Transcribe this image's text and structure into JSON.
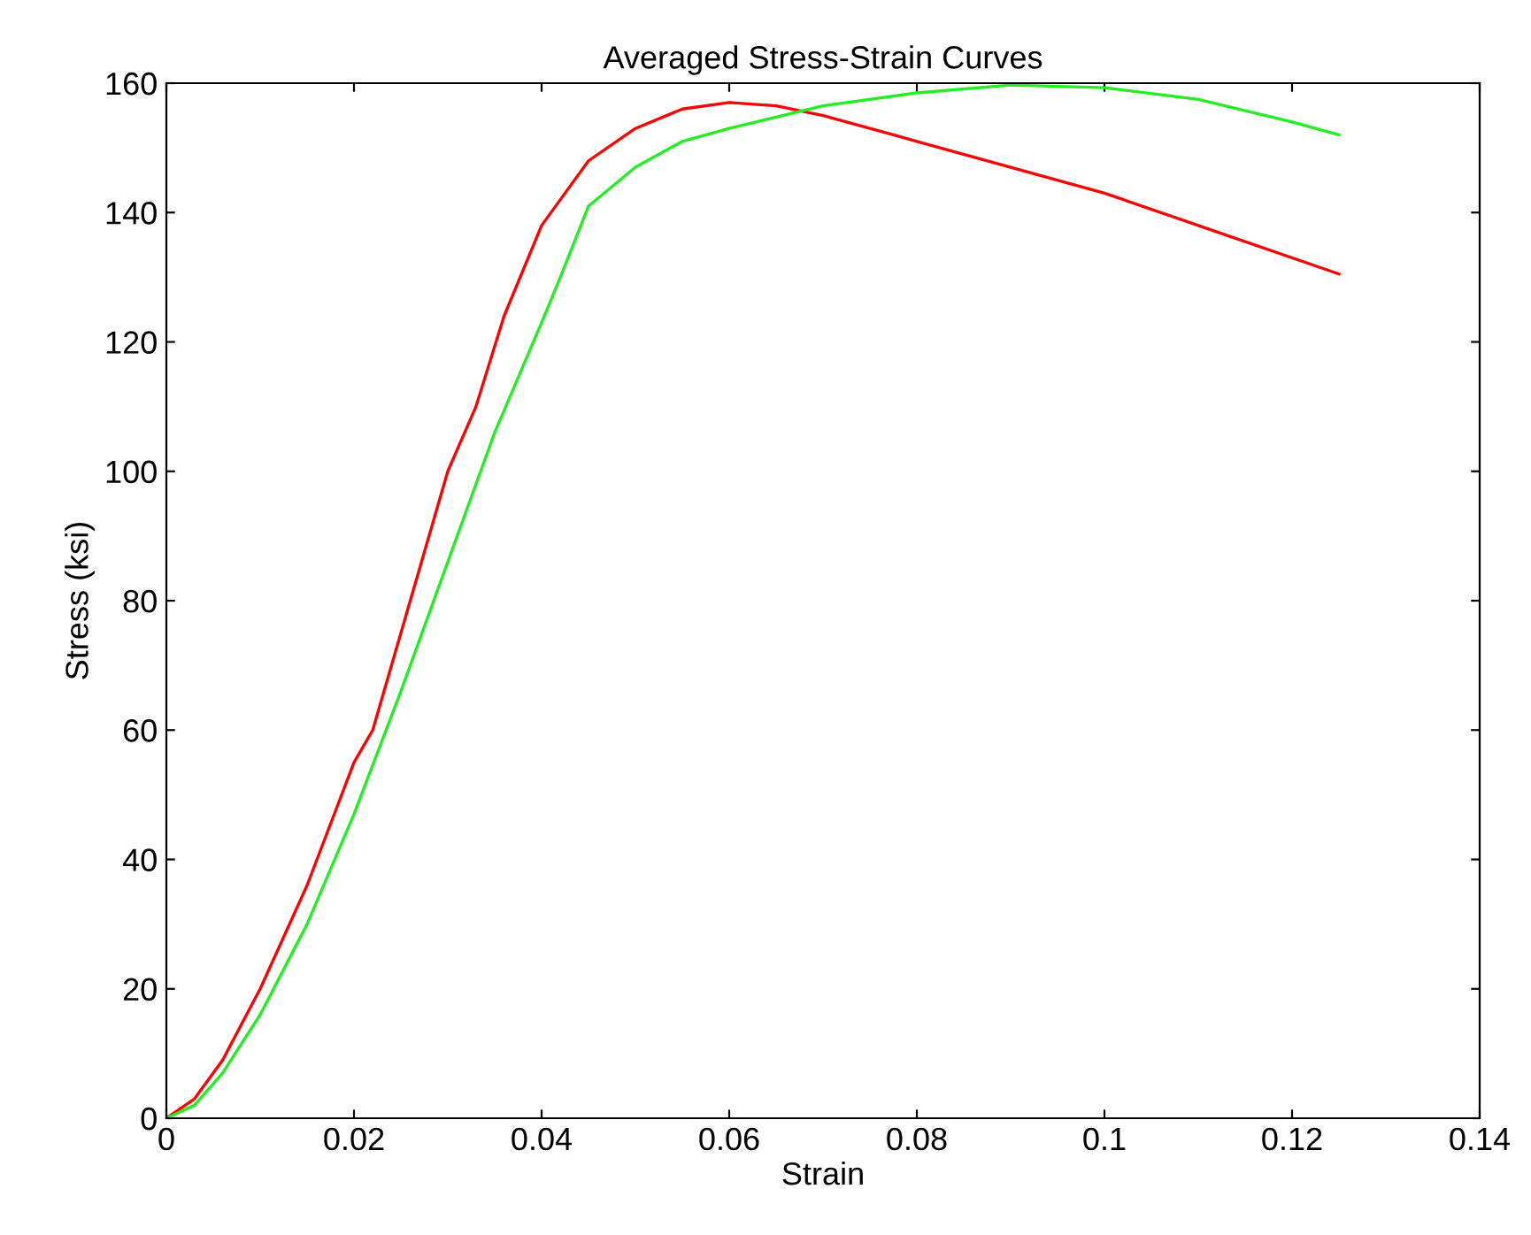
{
  "chart_data": {
    "type": "line",
    "title": "Averaged Stress-Strain Curves",
    "xlabel": "Strain",
    "ylabel": "Stress (ksi)",
    "xlim": [
      0,
      0.14
    ],
    "xticks": [
      0,
      0.02,
      0.04,
      0.06,
      0.08,
      0.1,
      0.12,
      0.14
    ],
    "ylim": [
      0,
      160
    ],
    "yticks": [
      0,
      20,
      40,
      60,
      80,
      100,
      120,
      140,
      160
    ],
    "grid": false,
    "legend": false,
    "marker": "none",
    "line_style": "solid",
    "series": [
      {
        "color": "#ff0000",
        "x": [
          0,
          0.003,
          0.006,
          0.01,
          0.015,
          0.02,
          0.022,
          0.025,
          0.03,
          0.033,
          0.036,
          0.04,
          0.042,
          0.045,
          0.05,
          0.055,
          0.06,
          0.065,
          0.07,
          0.08,
          0.09,
          0.1,
          0.11,
          0.125
        ],
        "values": [
          0,
          3,
          9,
          20,
          36,
          55,
          60,
          75,
          100,
          110,
          124,
          138,
          142,
          148,
          153,
          156,
          157,
          156.5,
          155,
          151,
          147,
          143,
          138,
          130.5
        ]
      },
      {
        "color": "#22ee22",
        "x": [
          0,
          0.003,
          0.006,
          0.01,
          0.015,
          0.02,
          0.025,
          0.03,
          0.035,
          0.04,
          0.042,
          0.045,
          0.05,
          0.055,
          0.06,
          0.07,
          0.08,
          0.09,
          0.1,
          0.11,
          0.12,
          0.125
        ],
        "values": [
          0,
          2,
          7,
          16,
          30,
          47,
          66,
          86,
          106,
          123,
          130,
          141,
          147,
          151,
          153,
          156.5,
          158.5,
          159.7,
          159.3,
          157.5,
          154,
          152
        ]
      }
    ]
  }
}
